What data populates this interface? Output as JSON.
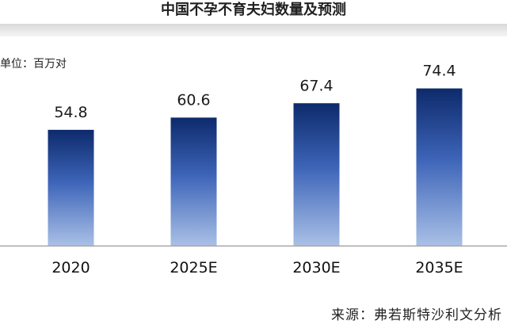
{
  "chart_data": {
    "type": "bar",
    "title": "中国不孕不育夫妇数量及预测",
    "unit_label": "单位：百万对",
    "categories": [
      "2020",
      "2025E",
      "2030E",
      "2035E"
    ],
    "values": [
      54.8,
      60.6,
      67.4,
      74.4
    ],
    "ylim": [
      0,
      90
    ],
    "grid": false,
    "bar_gradient": {
      "top": "#0d2a6b",
      "mid": "#3d64b8",
      "bottom": "#a9c0e6"
    },
    "baseline_color": "#a6a6a6",
    "source": "来源：弗若斯特沙利文分析"
  }
}
